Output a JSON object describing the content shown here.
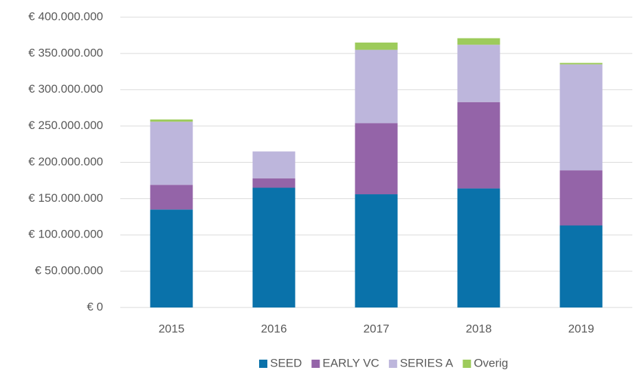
{
  "chart_data": {
    "type": "stacked_bar",
    "categories": [
      "2015",
      "2016",
      "2017",
      "2018",
      "2019"
    ],
    "series": [
      {
        "name": "SEED",
        "color": "#0a72aa",
        "values": [
          135000000,
          165000000,
          156000000,
          164000000,
          113000000
        ]
      },
      {
        "name": "EARLY VC",
        "color": "#9464a8",
        "values": [
          34000000,
          13000000,
          98000000,
          119000000,
          76000000
        ]
      },
      {
        "name": "SERIES A",
        "color": "#bdb6dc",
        "values": [
          87000000,
          37000000,
          101000000,
          79000000,
          146000000
        ]
      },
      {
        "name": "Overig",
        "color": "#9dcb5b",
        "values": [
          3000000,
          0,
          10000000,
          9000000,
          2000000
        ]
      }
    ],
    "ylim": [
      0,
      400000000
    ],
    "yticks": [
      {
        "value": 0,
        "label": "€ 0"
      },
      {
        "value": 50000000,
        "label": "€ 50.000.000"
      },
      {
        "value": 100000000,
        "label": "€ 100.000.000"
      },
      {
        "value": 150000000,
        "label": "€ 150.000.000"
      },
      {
        "value": 200000000,
        "label": "€ 200.000.000"
      },
      {
        "value": 250000000,
        "label": "€ 250.000.000"
      },
      {
        "value": 300000000,
        "label": "€ 300.000.000"
      },
      {
        "value": 350000000,
        "label": "€ 350.000.000"
      },
      {
        "value": 400000000,
        "label": "€ 400.000.000"
      }
    ],
    "grid": true,
    "legend": "bottom"
  }
}
